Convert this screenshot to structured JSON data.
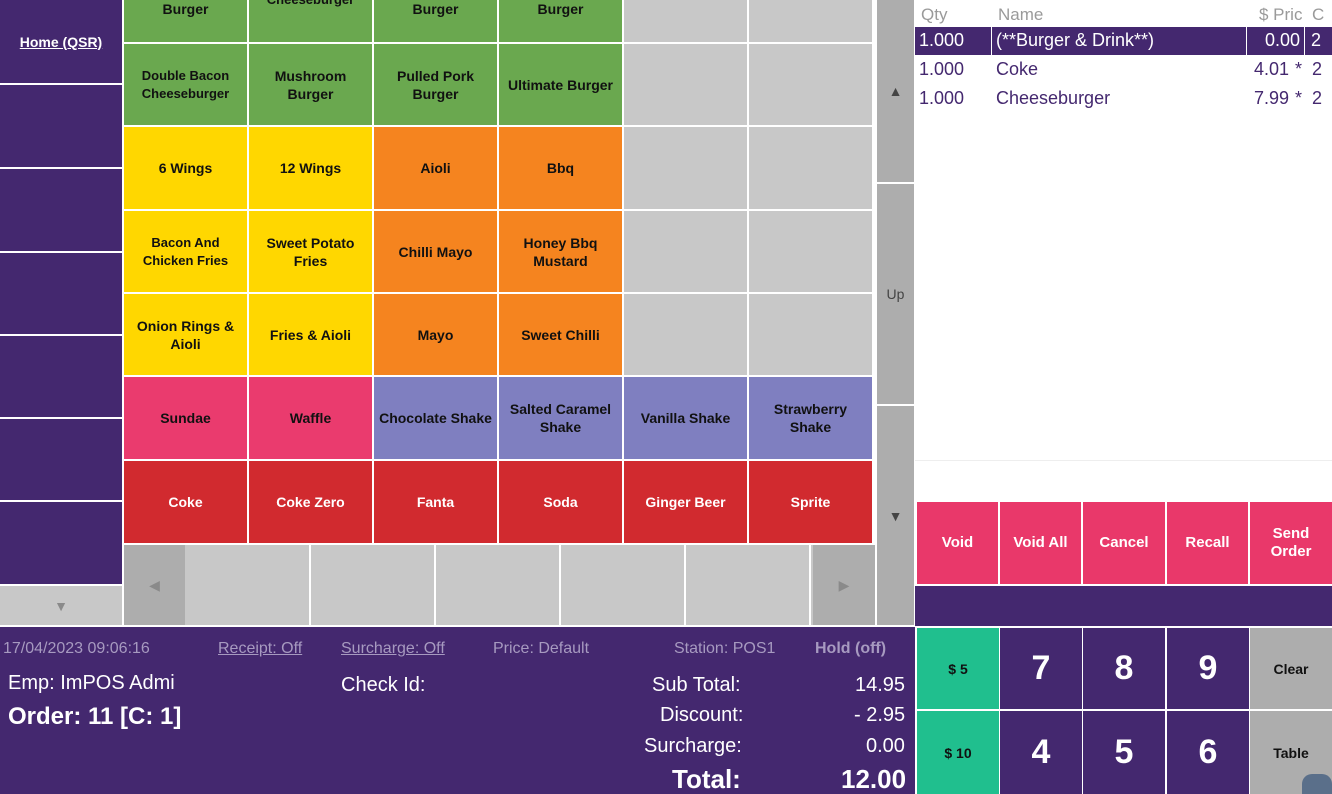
{
  "nav": {
    "home_label": "Home (QSR)",
    "down_arrow": "▼"
  },
  "menu": {
    "rows": [
      [
        {
          "label": "Burger",
          "color": "#6aa84f"
        },
        {
          "label": "Cheeseburger",
          "color": "#6aa84f"
        },
        {
          "label": "Burger",
          "color": "#6aa84f"
        },
        {
          "label": "Burger",
          "color": "#6aa84f"
        },
        {
          "label": "",
          "color": "#c8c8c8"
        },
        {
          "label": "",
          "color": "#c8c8c8"
        }
      ],
      [
        {
          "label": "Double Bacon Cheeseburger",
          "color": "#6aa84f"
        },
        {
          "label": "Mushroom Burger",
          "color": "#6aa84f"
        },
        {
          "label": "Pulled Pork Burger",
          "color": "#6aa84f"
        },
        {
          "label": "Ultimate Burger",
          "color": "#6aa84f"
        },
        {
          "label": "",
          "color": "#c8c8c8"
        },
        {
          "label": "",
          "color": "#c8c8c8"
        }
      ],
      [
        {
          "label": "6 Wings",
          "color": "#ffd700"
        },
        {
          "label": "12 Wings",
          "color": "#ffd700"
        },
        {
          "label": "Aioli",
          "color": "#f5841f"
        },
        {
          "label": "Bbq",
          "color": "#f5841f"
        },
        {
          "label": "",
          "color": "#c8c8c8"
        },
        {
          "label": "",
          "color": "#c8c8c8"
        }
      ],
      [
        {
          "label": "Bacon And Chicken Fries",
          "color": "#ffd700"
        },
        {
          "label": "Sweet Potato Fries",
          "color": "#ffd700"
        },
        {
          "label": "Chilli Mayo",
          "color": "#f5841f"
        },
        {
          "label": "Honey Bbq Mustard",
          "color": "#f5841f"
        },
        {
          "label": "",
          "color": "#c8c8c8"
        },
        {
          "label": "",
          "color": "#c8c8c8"
        }
      ],
      [
        {
          "label": "Onion Rings & Aioli",
          "color": "#ffd700"
        },
        {
          "label": "Fries & Aioli",
          "color": "#ffd700"
        },
        {
          "label": "Mayo",
          "color": "#f5841f"
        },
        {
          "label": "Sweet Chilli",
          "color": "#f5841f"
        },
        {
          "label": "",
          "color": "#c8c8c8"
        },
        {
          "label": "",
          "color": "#c8c8c8"
        }
      ],
      [
        {
          "label": "Sundae",
          "color": "#ea3b6e"
        },
        {
          "label": "Waffle",
          "color": "#ea3b6e"
        },
        {
          "label": "Chocolate Shake",
          "color": "#7f7fc0"
        },
        {
          "label": "Salted Caramel Shake",
          "color": "#7f7fc0"
        },
        {
          "label": "Vanilla Shake",
          "color": "#7f7fc0"
        },
        {
          "label": "Strawberry Shake",
          "color": "#7f7fc0"
        }
      ],
      [
        {
          "label": "Coke",
          "color": "#d12a2f"
        },
        {
          "label": "Coke Zero",
          "color": "#d12a2f"
        },
        {
          "label": "Fanta",
          "color": "#d12a2f"
        },
        {
          "label": "Soda",
          "color": "#d12a2f"
        },
        {
          "label": "Ginger Beer",
          "color": "#d12a2f"
        },
        {
          "label": "Sprite",
          "color": "#d12a2f"
        }
      ]
    ],
    "page_left": "◀",
    "page_right": "▶"
  },
  "scroll": {
    "up_arrow": "▲",
    "up_label": "Up",
    "down_arrow": "▼"
  },
  "order": {
    "headers": {
      "qty": "Qty",
      "name": "Name",
      "price": "$ Pric",
      "c": "C"
    },
    "rows": [
      {
        "qty": "1.000",
        "name": "(**Burger & Drink**)",
        "price": "0.00",
        "flag": "",
        "c": "2",
        "selected": true
      },
      {
        "qty": "1.000",
        "name": "Coke",
        "price": "4.01",
        "flag": "*",
        "c": "2",
        "selected": false
      },
      {
        "qty": "1.000",
        "name": "Cheeseburger",
        "price": "7.99",
        "flag": "*",
        "c": "2",
        "selected": false
      }
    ]
  },
  "actions": {
    "void": "Void",
    "void_all": "Void All",
    "cancel": "Cancel",
    "recall": "Recall",
    "send_order": "Send Order"
  },
  "status": {
    "datetime": "17/04/2023 09:06:16",
    "receipt": "Receipt: Off",
    "surcharge_toggle": "Surcharge: Off",
    "price": "Price: Default",
    "station": "Station: POS1",
    "hold": "Hold (off)",
    "emp": "Emp:  ImPOS Admi",
    "check_id": "Check Id:",
    "order": "Order: 11 [C:  1]",
    "subtotal_label": "Sub Total:",
    "subtotal": "14.95",
    "discount_label": "Discount:",
    "discount": "- 2.95",
    "surcharge_label": "Surcharge:",
    "surcharge": "0.00",
    "total_label": "Total:",
    "total": "12.00"
  },
  "keypad": {
    "cash5": "$ 5",
    "cash10": "$ 10",
    "k7": "7",
    "k8": "8",
    "k9": "9",
    "k4": "4",
    "k5": "5",
    "k6": "6",
    "clear": "Clear",
    "table": "Table"
  },
  "colors": {
    "purple": "#44286f",
    "pink": "#e9386a",
    "green_cash": "#20bf8e",
    "grey": "#adadad"
  }
}
